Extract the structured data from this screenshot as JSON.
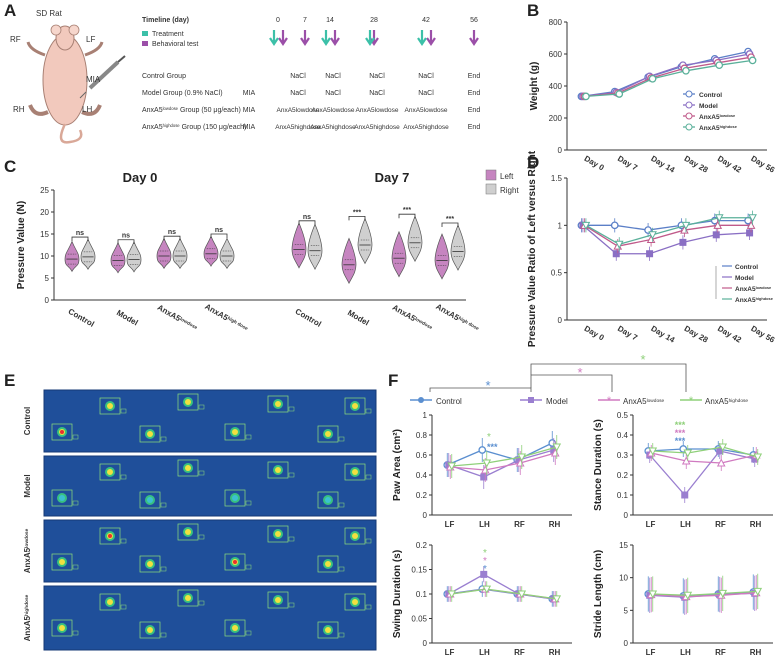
{
  "panel_labels": {
    "a": "A",
    "b": "B",
    "c": "C",
    "d": "D",
    "e": "E",
    "f": "F"
  },
  "panel_a": {
    "rat_title": "SD Rat",
    "paw_labels": {
      "rf": "RF",
      "lf": "LF",
      "rh": "RH",
      "lh": "LH",
      "mia": "MIA"
    },
    "timeline_title": "Timeline (day)",
    "legend": {
      "treatment": "Treatment",
      "behavioral": "Behavioral test"
    },
    "colors": {
      "treatment": "#3cc0a8",
      "behavioral": "#9b4fa8"
    },
    "days": [
      "0",
      "7",
      "14",
      "28",
      "42",
      "56"
    ],
    "groups": [
      {
        "name": "Control Group",
        "cells": [
          "",
          "NaCl",
          "NaCl",
          "NaCl",
          "NaCl",
          "End"
        ]
      },
      {
        "name": "Model Group (0.9% NaCl)",
        "cells": [
          "MIA",
          "NaCl",
          "NaCl",
          "NaCl",
          "NaCl",
          "End"
        ]
      },
      {
        "name": "AnxA5",
        "sup": "lowdose",
        "rest": " Group (50 μg/each)",
        "cells": [
          "MIA",
          "AnxA5lowdose",
          "AnxA5lowdose",
          "AnxA5lowdose",
          "AnxA5lowdose",
          "End"
        ]
      },
      {
        "name": "AnxA5",
        "sup": "highdose",
        "rest": " Group (150 μg/each)",
        "cells": [
          "MIA",
          "AnxA5highdose",
          "AnxA5highdose",
          "AnxA5highdose",
          "AnxA5highdose",
          "End"
        ]
      }
    ]
  },
  "group_names": {
    "control": "Control",
    "model": "Model",
    "low_base": "AnxA5",
    "low_sup": "lowdose",
    "high_base": "AnxA5",
    "high_sup": "highdose",
    "high_sup_c": "high dose"
  },
  "chart_data": [
    {
      "id": "B",
      "type": "line",
      "ylabel": "Weight (g)",
      "ylim": [
        0,
        800
      ],
      "yticks": [
        0,
        200,
        400,
        600,
        800
      ],
      "categories": [
        "Day 0",
        "Day 7",
        "Day 14",
        "Day 28",
        "Day 42",
        "Day 56"
      ],
      "series": [
        {
          "name": "Control",
          "color": "#5b7fc7",
          "values": [
            335,
            365,
            455,
            520,
            570,
            615
          ]
        },
        {
          "name": "Model",
          "color": "#8a6fc4",
          "values": [
            335,
            360,
            460,
            530,
            560,
            600
          ]
        },
        {
          "name": "AnxA5 lowdose",
          "color": "#c05a8a",
          "values": [
            335,
            355,
            450,
            510,
            545,
            580
          ]
        },
        {
          "name": "AnxA5 highdose",
          "color": "#5ab09a",
          "values": [
            335,
            350,
            445,
            495,
            530,
            560
          ]
        }
      ]
    },
    {
      "id": "C",
      "type": "violin",
      "ylabel": "Pressure Value (N)",
      "ylim": [
        0,
        25
      ],
      "yticks": [
        0,
        5,
        10,
        15,
        20,
        25
      ],
      "titles": [
        "Day 0",
        "Day 7"
      ],
      "legend": [
        "Left",
        "Right"
      ],
      "colors": {
        "left": "#c685c0",
        "right": "#cfcfcf"
      },
      "groups": [
        "Control",
        "Model",
        "AnxA5 lowdose",
        "AnxA5 highdose"
      ],
      "day0": {
        "left_median": [
          9.3,
          9.0,
          10.0,
          10.5
        ],
        "right_median": [
          9.8,
          9.2,
          10.0,
          10.0
        ],
        "sig": [
          "ns",
          "ns",
          "ns",
          "ns"
        ]
      },
      "day7": {
        "left_median": [
          11.5,
          8.0,
          9.5,
          9.0
        ],
        "right_median": [
          11.2,
          12.5,
          13.0,
          11.0
        ],
        "sig": [
          "ns",
          "***",
          "***",
          "***"
        ]
      }
    },
    {
      "id": "D",
      "type": "line",
      "ylabel": "Pressure Value Ratio of Left versus Right",
      "ylim": [
        0,
        1.5
      ],
      "yticks": [
        0,
        0.5,
        1.0,
        1.5
      ],
      "categories": [
        "Day 0",
        "Day 7",
        "Day 14",
        "Day 28",
        "Day 42",
        "Day 56"
      ],
      "series": [
        {
          "name": "Control",
          "color": "#5b7fc7",
          "values": [
            1.0,
            1.0,
            0.95,
            1.0,
            1.05,
            1.05
          ]
        },
        {
          "name": "Model",
          "color": "#8a6fc4",
          "values": [
            1.0,
            0.7,
            0.7,
            0.82,
            0.9,
            0.92
          ]
        },
        {
          "name": "AnxA5 lowdose",
          "color": "#c05a8a",
          "values": [
            1.0,
            0.78,
            0.85,
            0.95,
            1.0,
            1.0
          ]
        },
        {
          "name": "AnxA5 highdose",
          "color": "#5ab09a",
          "values": [
            1.0,
            0.8,
            0.9,
            1.0,
            1.08,
            1.08
          ]
        }
      ]
    },
    {
      "id": "F1",
      "type": "line",
      "ylabel": "Paw Area (cm²)",
      "ylim": [
        0,
        1.0
      ],
      "yticks": [
        0,
        0.2,
        0.4,
        0.6,
        0.8,
        1.0
      ],
      "categories": [
        "LF",
        "LH",
        "RF",
        "RH"
      ],
      "series": [
        {
          "name": "Control",
          "values": [
            0.5,
            0.65,
            0.55,
            0.72
          ]
        },
        {
          "name": "Model",
          "values": [
            0.5,
            0.38,
            0.55,
            0.65
          ]
        },
        {
          "name": "AnxA5 lowdose",
          "values": [
            0.48,
            0.45,
            0.52,
            0.62
          ]
        },
        {
          "name": "AnxA5 highdose",
          "values": [
            0.49,
            0.52,
            0.58,
            0.68
          ]
        }
      ]
    },
    {
      "id": "F2",
      "type": "line",
      "ylabel": "Stance Duration (s)",
      "ylim": [
        0,
        0.5
      ],
      "yticks": [
        0,
        0.1,
        0.2,
        0.3,
        0.4,
        0.5
      ],
      "categories": [
        "LF",
        "LH",
        "RF",
        "RH"
      ],
      "series": [
        {
          "name": "Control",
          "values": [
            0.32,
            0.33,
            0.33,
            0.3
          ]
        },
        {
          "name": "Model",
          "values": [
            0.3,
            0.1,
            0.32,
            0.28
          ]
        },
        {
          "name": "AnxA5 lowdose",
          "values": [
            0.31,
            0.27,
            0.26,
            0.3
          ]
        },
        {
          "name": "AnxA5 highdose",
          "values": [
            0.32,
            0.31,
            0.34,
            0.29
          ]
        }
      ]
    },
    {
      "id": "F3",
      "type": "line",
      "ylabel": "Swing Duration (s)",
      "ylim": [
        0,
        0.2
      ],
      "yticks": [
        0,
        0.05,
        0.1,
        0.15,
        0.2
      ],
      "categories": [
        "LF",
        "LH",
        "RF",
        "RH"
      ],
      "series": [
        {
          "name": "Control",
          "values": [
            0.1,
            0.11,
            0.1,
            0.09
          ]
        },
        {
          "name": "Model",
          "values": [
            0.1,
            0.14,
            0.1,
            0.09
          ]
        },
        {
          "name": "AnxA5 lowdose",
          "values": [
            0.1,
            0.11,
            0.1,
            0.09
          ]
        },
        {
          "name": "AnxA5 highdose",
          "values": [
            0.1,
            0.11,
            0.1,
            0.09
          ]
        }
      ]
    },
    {
      "id": "F4",
      "type": "line",
      "ylabel": "Stride Length (cm)",
      "ylim": [
        0,
        15
      ],
      "yticks": [
        0,
        5,
        10,
        15
      ],
      "categories": [
        "LF",
        "LH",
        "RF",
        "RH"
      ],
      "series": [
        {
          "name": "Control",
          "values": [
            7.5,
            7.2,
            7.5,
            7.8
          ]
        },
        {
          "name": "Model",
          "values": [
            7.3,
            7.0,
            7.4,
            7.6
          ]
        },
        {
          "name": "AnxA5 lowdose",
          "values": [
            7.4,
            7.1,
            7.3,
            7.7
          ]
        },
        {
          "name": "AnxA5 highdose",
          "values": [
            7.5,
            7.3,
            7.6,
            7.9
          ]
        }
      ]
    }
  ],
  "f_legend": {
    "control": "Control",
    "model": "Model",
    "low_base": "AnxA5",
    "low_sup": "lowdose",
    "high_base": "AnxA5",
    "high_sup": "highdose"
  },
  "f_colors": {
    "control": "#5b8fd0",
    "model": "#9a7fd0",
    "low": "#d07ac0",
    "high": "#8fd07a"
  },
  "sig": {
    "star": "*",
    "triple": "***"
  },
  "e_rows": [
    "Control",
    "Model",
    "AnxA5lowdose",
    "AnxA5highdose"
  ]
}
